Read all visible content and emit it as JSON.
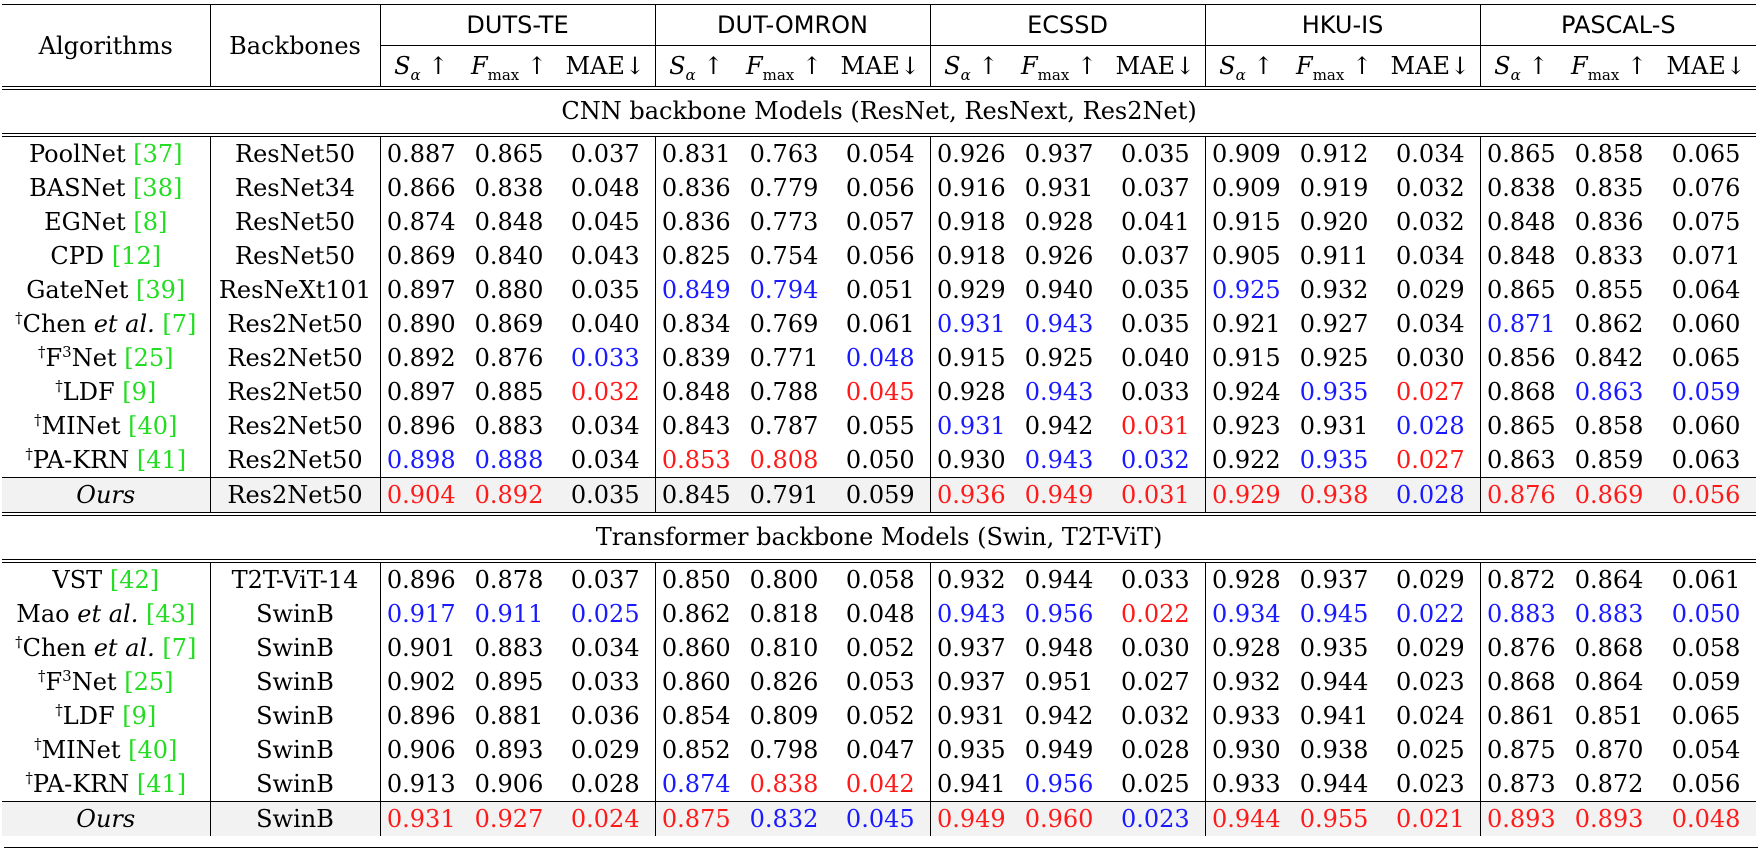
{
  "headers": {
    "algorithms": "Algorithms",
    "backbones": "Backbones",
    "datasets": [
      "DUTS-TE",
      "DUT-OMRON",
      "ECSSD",
      "HKU-IS",
      "PASCAL-S"
    ],
    "metric_s": "S",
    "metric_s_sub": "α",
    "metric_f": "F",
    "metric_f_sub": "max",
    "metric_mae": "MAE",
    "arrow_up": "↑",
    "arrow_down": "↓"
  },
  "sections": [
    {
      "title": "CNN backbone Models (ResNet, ResNext, Res2Net)",
      "rows": [
        {
          "dagger": "",
          "name": "PoolNet ",
          "ital": "",
          "tail": "",
          "ref": "[37]",
          "backbone": "ResNet50",
          "values": [
            "0.887",
            "0.865",
            "0.037",
            "0.831",
            "0.763",
            "0.054",
            "0.926",
            "0.937",
            "0.035",
            "0.909",
            "0.912",
            "0.034",
            "0.865",
            "0.858",
            "0.065"
          ],
          "colors": [
            "",
            "",
            "",
            "",
            "",
            "",
            "",
            "",
            "",
            "",
            "",
            "",
            "",
            "",
            ""
          ]
        },
        {
          "dagger": "",
          "name": "BASNet ",
          "ital": "",
          "tail": "",
          "ref": "[38]",
          "backbone": "ResNet34",
          "values": [
            "0.866",
            "0.838",
            "0.048",
            "0.836",
            "0.779",
            "0.056",
            "0.916",
            "0.931",
            "0.037",
            "0.909",
            "0.919",
            "0.032",
            "0.838",
            "0.835",
            "0.076"
          ],
          "colors": [
            "",
            "",
            "",
            "",
            "",
            "",
            "",
            "",
            "",
            "",
            "",
            "",
            "",
            "",
            ""
          ]
        },
        {
          "dagger": "",
          "name": "EGNet ",
          "ital": "",
          "tail": "",
          "ref": "[8]",
          "backbone": "ResNet50",
          "values": [
            "0.874",
            "0.848",
            "0.045",
            "0.836",
            "0.773",
            "0.057",
            "0.918",
            "0.928",
            "0.041",
            "0.915",
            "0.920",
            "0.032",
            "0.848",
            "0.836",
            "0.075"
          ],
          "colors": [
            "",
            "",
            "",
            "",
            "",
            "",
            "",
            "",
            "",
            "",
            "",
            "",
            "",
            "",
            ""
          ]
        },
        {
          "dagger": "",
          "name": "CPD ",
          "ital": "",
          "tail": "",
          "ref": "[12]",
          "backbone": "ResNet50",
          "values": [
            "0.869",
            "0.840",
            "0.043",
            "0.825",
            "0.754",
            "0.056",
            "0.918",
            "0.926",
            "0.037",
            "0.905",
            "0.911",
            "0.034",
            "0.848",
            "0.833",
            "0.071"
          ],
          "colors": [
            "",
            "",
            "",
            "",
            "",
            "",
            "",
            "",
            "",
            "",
            "",
            "",
            "",
            "",
            ""
          ]
        },
        {
          "dagger": "",
          "name": "GateNet ",
          "ital": "",
          "tail": "",
          "ref": "[39]",
          "backbone": "ResNeXt101",
          "values": [
            "0.897",
            "0.880",
            "0.035",
            "0.849",
            "0.794",
            "0.051",
            "0.929",
            "0.940",
            "0.035",
            "0.925",
            "0.932",
            "0.029",
            "0.865",
            "0.855",
            "0.064"
          ],
          "colors": [
            "",
            "",
            "",
            "blue",
            "blue",
            "",
            "",
            "",
            "",
            "blue",
            "",
            "",
            "",
            "",
            ""
          ]
        },
        {
          "dagger": "†",
          "name": "Chen ",
          "ital": "et al.",
          "tail": " ",
          "ref": "[7]",
          "backbone": "Res2Net50",
          "values": [
            "0.890",
            "0.869",
            "0.040",
            "0.834",
            "0.769",
            "0.061",
            "0.931",
            "0.943",
            "0.035",
            "0.921",
            "0.927",
            "0.034",
            "0.871",
            "0.862",
            "0.060"
          ],
          "colors": [
            "",
            "",
            "",
            "",
            "",
            "",
            "blue",
            "blue",
            "",
            "",
            "",
            "",
            "blue",
            "",
            ""
          ]
        },
        {
          "dagger": "†",
          "name": "F",
          "sup": "3",
          "name2": "Net ",
          "ital": "",
          "tail": "",
          "ref": "[25]",
          "backbone": "Res2Net50",
          "values": [
            "0.892",
            "0.876",
            "0.033",
            "0.839",
            "0.771",
            "0.048",
            "0.915",
            "0.925",
            "0.040",
            "0.915",
            "0.925",
            "0.030",
            "0.856",
            "0.842",
            "0.065"
          ],
          "colors": [
            "",
            "",
            "blue",
            "",
            "",
            "blue",
            "",
            "",
            "",
            "",
            "",
            "",
            "",
            "",
            ""
          ]
        },
        {
          "dagger": "†",
          "name": "LDF ",
          "ital": "",
          "tail": "",
          "ref": "[9]",
          "backbone": "Res2Net50",
          "values": [
            "0.897",
            "0.885",
            "0.032",
            "0.848",
            "0.788",
            "0.045",
            "0.928",
            "0.943",
            "0.033",
            "0.924",
            "0.935",
            "0.027",
            "0.868",
            "0.863",
            "0.059"
          ],
          "colors": [
            "",
            "",
            "red",
            "",
            "",
            "red",
            "",
            "blue",
            "",
            "",
            "blue",
            "red",
            "",
            "blue",
            "blue"
          ]
        },
        {
          "dagger": "†",
          "name": "MINet ",
          "ital": "",
          "tail": "",
          "ref": "[40]",
          "backbone": "Res2Net50",
          "values": [
            "0.896",
            "0.883",
            "0.034",
            "0.843",
            "0.787",
            "0.055",
            "0.931",
            "0.942",
            "0.031",
            "0.923",
            "0.931",
            "0.028",
            "0.865",
            "0.858",
            "0.060"
          ],
          "colors": [
            "",
            "",
            "",
            "",
            "",
            "",
            "blue",
            "",
            "red",
            "",
            "",
            "blue",
            "",
            "",
            ""
          ]
        },
        {
          "dagger": "†",
          "name": "PA-KRN ",
          "ital": "",
          "tail": "",
          "ref": "[41]",
          "backbone": "Res2Net50",
          "values": [
            "0.898",
            "0.888",
            "0.034",
            "0.853",
            "0.808",
            "0.050",
            "0.930",
            "0.943",
            "0.032",
            "0.922",
            "0.935",
            "0.027",
            "0.863",
            "0.859",
            "0.063"
          ],
          "colors": [
            "blue",
            "blue",
            "",
            "red",
            "red",
            "",
            "",
            "blue",
            "blue",
            "",
            "blue",
            "red",
            "",
            "",
            ""
          ]
        }
      ],
      "ours": {
        "name": "Ours",
        "backbone": "Res2Net50",
        "values": [
          "0.904",
          "0.892",
          "0.035",
          "0.845",
          "0.791",
          "0.059",
          "0.936",
          "0.949",
          "0.031",
          "0.929",
          "0.938",
          "0.028",
          "0.876",
          "0.869",
          "0.056"
        ],
        "colors": [
          "red",
          "red",
          "",
          "",
          "",
          "",
          "red",
          "red",
          "red",
          "red",
          "red",
          "blue",
          "red",
          "red",
          "red"
        ]
      }
    },
    {
      "title": "Transformer backbone Models (Swin, T2T-ViT)",
      "rows": [
        {
          "dagger": "",
          "name": "VST ",
          "ital": "",
          "tail": "",
          "ref": "[42]",
          "backbone": "T2T-ViT-14",
          "values": [
            "0.896",
            "0.878",
            "0.037",
            "0.850",
            "0.800",
            "0.058",
            "0.932",
            "0.944",
            "0.033",
            "0.928",
            "0.937",
            "0.029",
            "0.872",
            "0.864",
            "0.061"
          ],
          "colors": [
            "",
            "",
            "",
            "",
            "",
            "",
            "",
            "",
            "",
            "",
            "",
            "",
            "",
            "",
            ""
          ]
        },
        {
          "dagger": "",
          "name": "Mao ",
          "ital": "et al.",
          "tail": " ",
          "ref": "[43]",
          "backbone": "SwinB",
          "values": [
            "0.917",
            "0.911",
            "0.025",
            "0.862",
            "0.818",
            "0.048",
            "0.943",
            "0.956",
            "0.022",
            "0.934",
            "0.945",
            "0.022",
            "0.883",
            "0.883",
            "0.050"
          ],
          "colors": [
            "blue",
            "blue",
            "blue",
            "",
            "",
            "",
            "blue",
            "blue",
            "red",
            "blue",
            "blue",
            "blue",
            "blue",
            "blue",
            "blue"
          ]
        },
        {
          "dagger": "†",
          "name": "Chen ",
          "ital": "et al.",
          "tail": " ",
          "ref": "[7]",
          "backbone": "SwinB",
          "values": [
            "0.901",
            "0.883",
            "0.034",
            "0.860",
            "0.810",
            "0.052",
            "0.937",
            "0.948",
            "0.030",
            "0.928",
            "0.935",
            "0.029",
            "0.876",
            "0.868",
            "0.058"
          ],
          "colors": [
            "",
            "",
            "",
            "",
            "",
            "",
            "",
            "",
            "",
            "",
            "",
            "",
            "",
            "",
            ""
          ]
        },
        {
          "dagger": "†",
          "name": "F",
          "sup": "3",
          "name2": "Net ",
          "ital": "",
          "tail": "",
          "ref": "[25]",
          "backbone": "SwinB",
          "values": [
            "0.902",
            "0.895",
            "0.033",
            "0.860",
            "0.826",
            "0.053",
            "0.937",
            "0.951",
            "0.027",
            "0.932",
            "0.944",
            "0.023",
            "0.868",
            "0.864",
            "0.059"
          ],
          "colors": [
            "",
            "",
            "",
            "",
            "",
            "",
            "",
            "",
            "",
            "",
            "",
            "",
            "",
            "",
            ""
          ]
        },
        {
          "dagger": "†",
          "name": "LDF ",
          "ital": "",
          "tail": "",
          "ref": "[9]",
          "backbone": "SwinB",
          "values": [
            "0.896",
            "0.881",
            "0.036",
            "0.854",
            "0.809",
            "0.052",
            "0.931",
            "0.942",
            "0.032",
            "0.933",
            "0.941",
            "0.024",
            "0.861",
            "0.851",
            "0.065"
          ],
          "colors": [
            "",
            "",
            "",
            "",
            "",
            "",
            "",
            "",
            "",
            "",
            "",
            "",
            "",
            "",
            ""
          ]
        },
        {
          "dagger": "†",
          "name": "MINet ",
          "ital": "",
          "tail": "",
          "ref": "[40]",
          "backbone": "SwinB",
          "values": [
            "0.906",
            "0.893",
            "0.029",
            "0.852",
            "0.798",
            "0.047",
            "0.935",
            "0.949",
            "0.028",
            "0.930",
            "0.938",
            "0.025",
            "0.875",
            "0.870",
            "0.054"
          ],
          "colors": [
            "",
            "",
            "",
            "",
            "",
            "",
            "",
            "",
            "",
            "",
            "",
            "",
            "",
            "",
            ""
          ]
        },
        {
          "dagger": "†",
          "name": "PA-KRN ",
          "ital": "",
          "tail": "",
          "ref": "[41]",
          "backbone": "SwinB",
          "values": [
            "0.913",
            "0.906",
            "0.028",
            "0.874",
            "0.838",
            "0.042",
            "0.941",
            "0.956",
            "0.025",
            "0.933",
            "0.944",
            "0.023",
            "0.873",
            "0.872",
            "0.056"
          ],
          "colors": [
            "",
            "",
            "",
            "blue",
            "red",
            "red",
            "",
            "blue",
            "",
            "",
            "",
            "",
            "",
            "",
            ""
          ]
        }
      ],
      "ours": {
        "name": "Ours",
        "backbone": "SwinB",
        "values": [
          "0.931",
          "0.927",
          "0.024",
          "0.875",
          "0.832",
          "0.045",
          "0.949",
          "0.960",
          "0.023",
          "0.944",
          "0.955",
          "0.021",
          "0.893",
          "0.893",
          "0.048"
        ],
        "colors": [
          "red",
          "red",
          "red",
          "red",
          "blue",
          "blue",
          "red",
          "red",
          "blue",
          "red",
          "red",
          "red",
          "red",
          "red",
          "red"
        ]
      }
    }
  ]
}
